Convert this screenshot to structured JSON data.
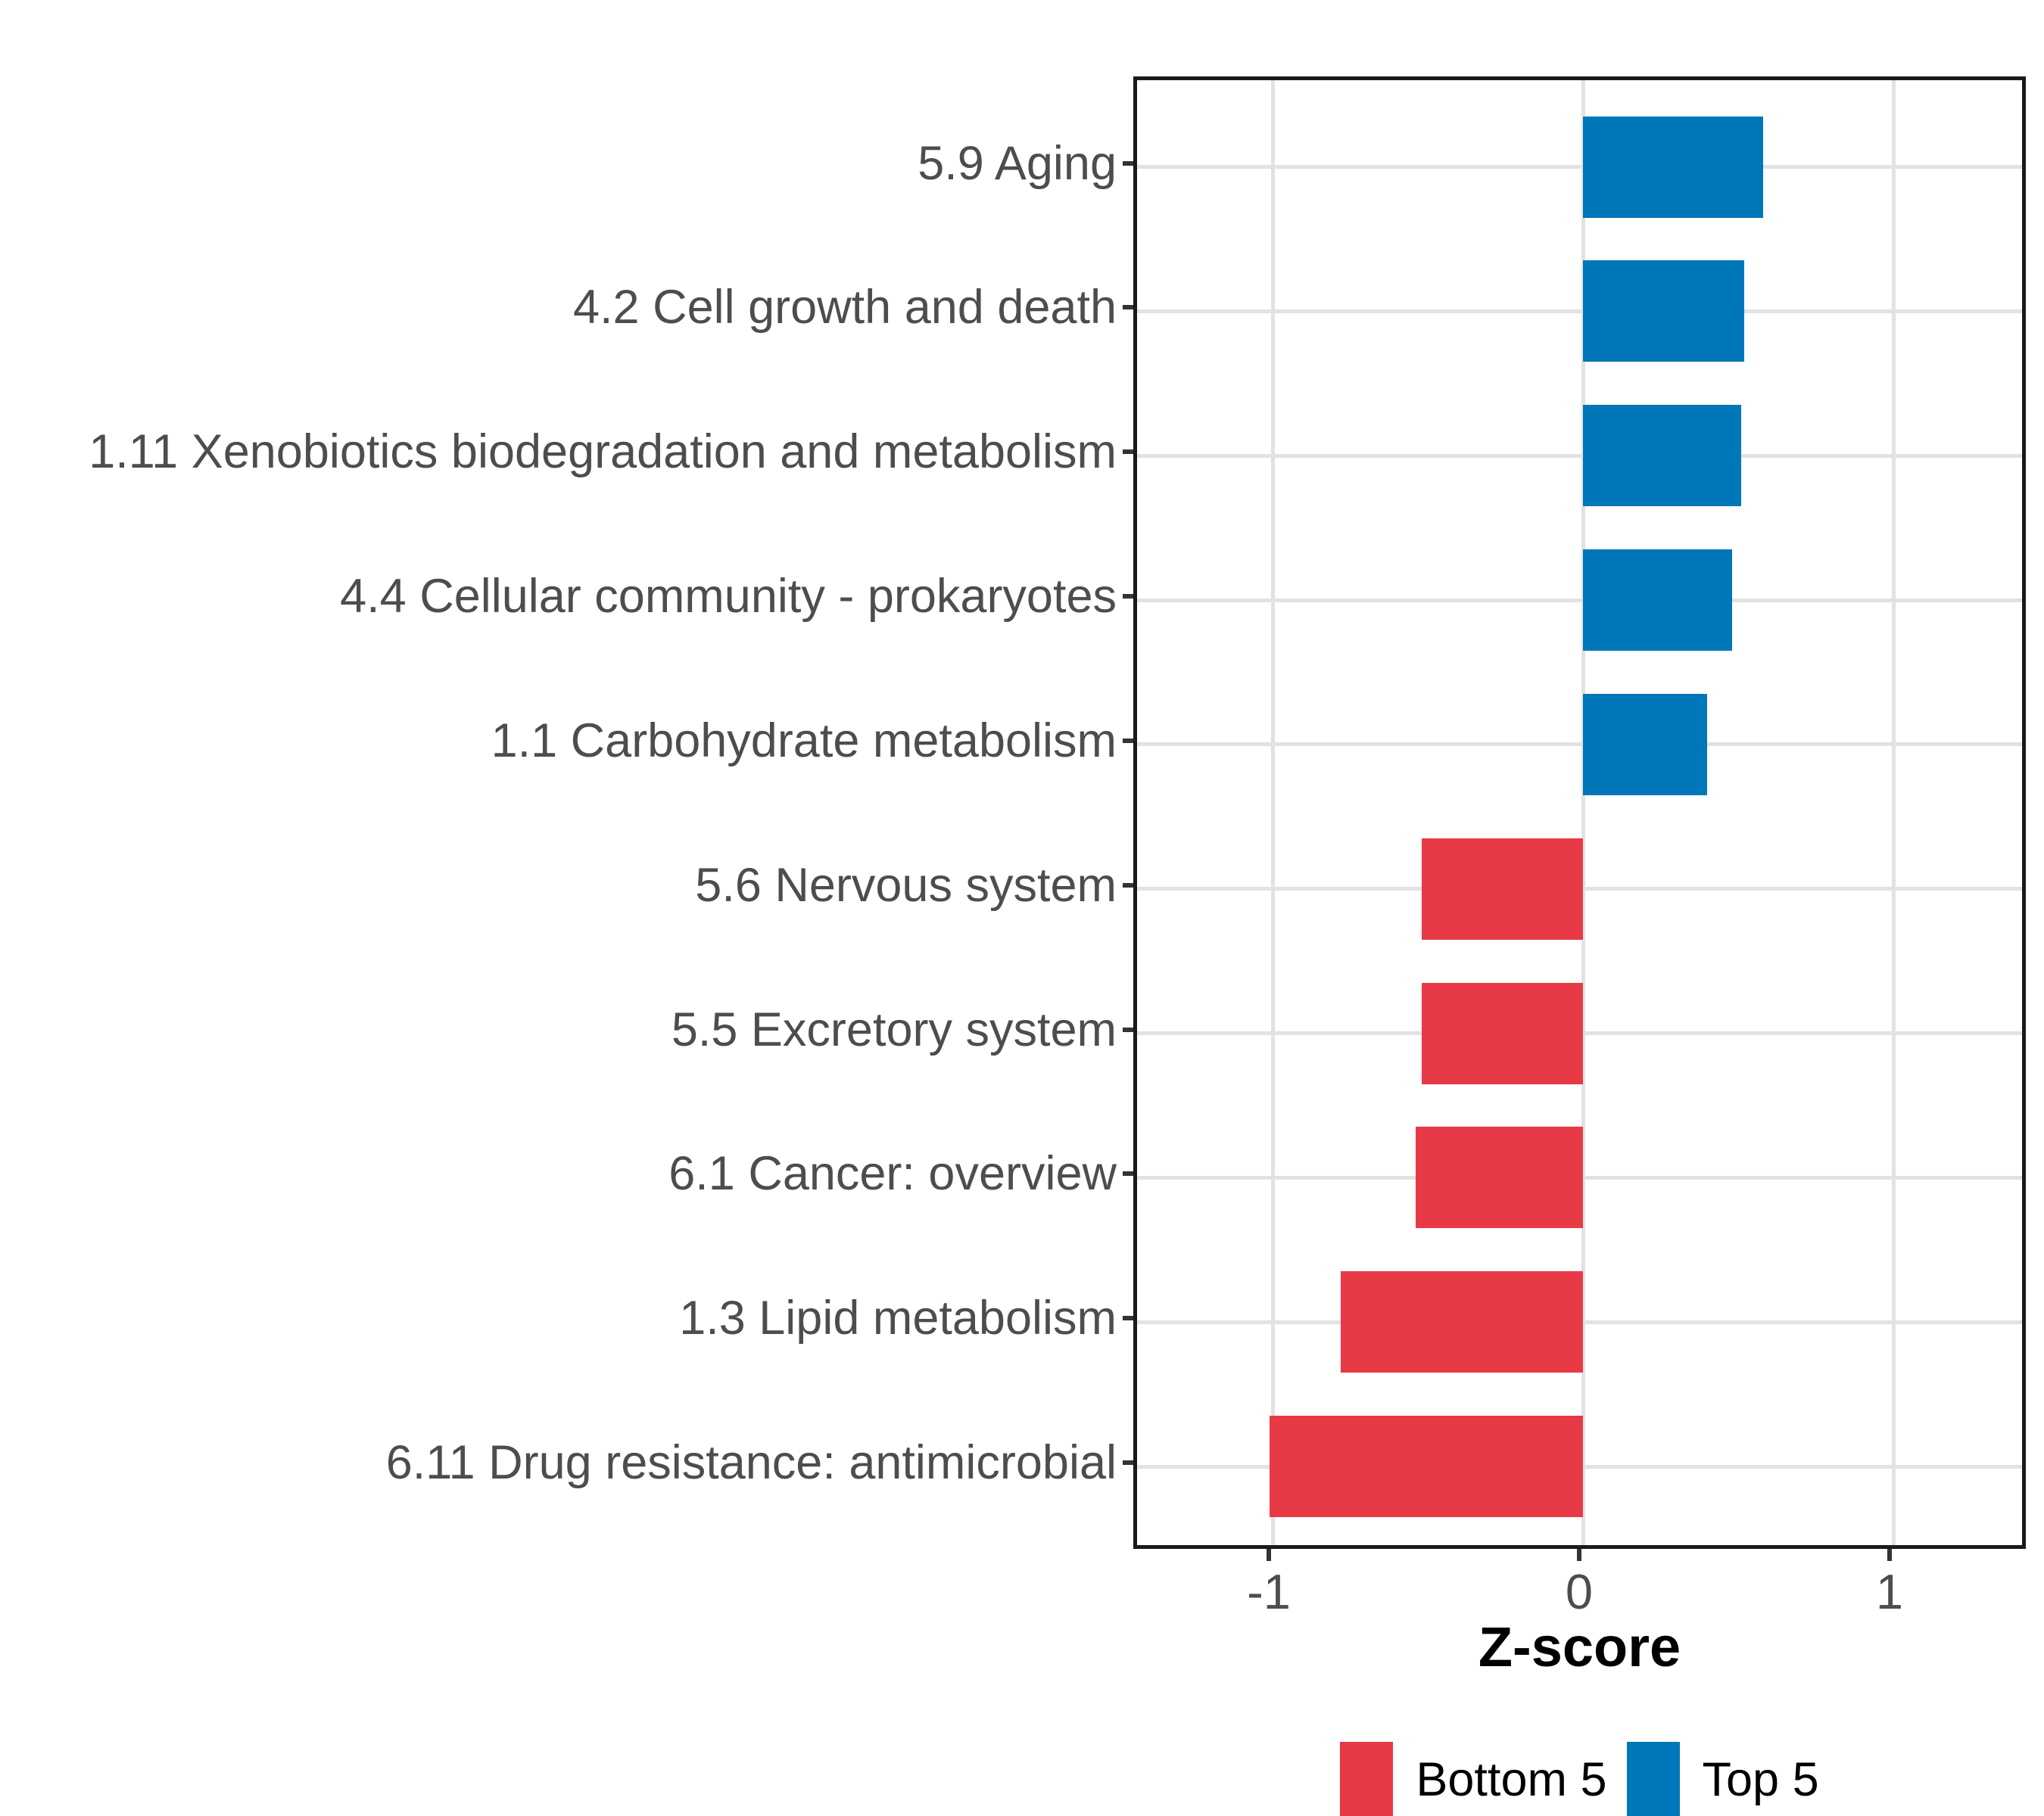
{
  "chart_data": {
    "type": "bar",
    "orientation": "horizontal",
    "title": "",
    "xlabel": "Z-score",
    "ylabel": "",
    "xlim": [
      -1.44,
      1.44
    ],
    "xticks": [
      -1,
      0,
      1
    ],
    "xtick_labels": [
      "-1",
      "0",
      "1"
    ],
    "grid": true,
    "legend_position": "bottom",
    "bars": [
      {
        "label": "5.9 Aging",
        "value": 0.58,
        "group": "Top 5"
      },
      {
        "label": "4.2 Cell growth and death",
        "value": 0.52,
        "group": "Top 5"
      },
      {
        "label": "1.11 Xenobiotics biodegradation and metabolism",
        "value": 0.51,
        "group": "Top 5"
      },
      {
        "label": "4.4 Cellular community - prokaryotes",
        "value": 0.48,
        "group": "Top 5"
      },
      {
        "label": "1.1 Carbohydrate metabolism",
        "value": 0.4,
        "group": "Top 5"
      },
      {
        "label": "5.6 Nervous system",
        "value": -0.52,
        "group": "Bottom 5"
      },
      {
        "label": "5.5 Excretory system",
        "value": -0.52,
        "group": "Bottom 5"
      },
      {
        "label": "6.1 Cancer: overview",
        "value": -0.54,
        "group": "Bottom 5"
      },
      {
        "label": "1.3 Lipid metabolism",
        "value": -0.78,
        "group": "Bottom 5"
      },
      {
        "label": "6.11 Drug resistance: antimicrobial",
        "value": -1.01,
        "group": "Bottom 5"
      }
    ],
    "group_colors": {
      "Top 5": "#0077B8",
      "Bottom 5": "#E83947"
    }
  },
  "legend": {
    "items": [
      {
        "label": "Bottom 5",
        "color": "#E83947"
      },
      {
        "label": "Top 5",
        "color": "#0077B8"
      }
    ]
  },
  "style": {
    "grid_color": "#E2E2E2",
    "panel_border_color": "#1A1A1A",
    "axis_text_color": "#4D4D4D",
    "tick_color": "#333333",
    "background": "#FFFFFF"
  }
}
